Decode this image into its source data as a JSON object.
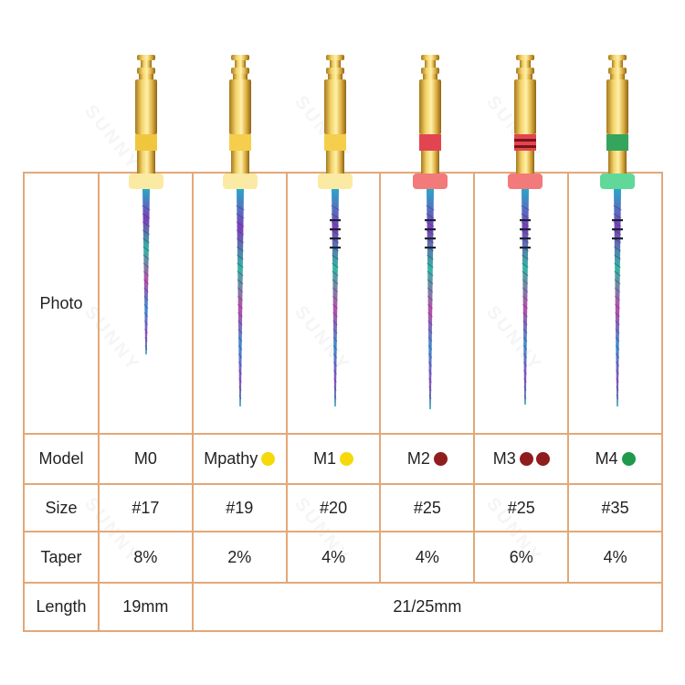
{
  "watermark": {
    "text": "SUNNY"
  },
  "colors": {
    "border": "#e3a878",
    "gold": "#c9a033",
    "yellow": "#f5d90a",
    "dark_red": "#8f1d1d",
    "red_ring": "#e0303e",
    "green": "#1f9a4a",
    "stopper_yellow": "#fbeaa3",
    "stopper_red": "#f27a7a",
    "stopper_green": "#5fd89a"
  },
  "table": {
    "row_labels": {
      "photo": "Photo",
      "model": "Model",
      "size": "Size",
      "taper": "Taper",
      "length": "Length"
    },
    "files": [
      {
        "model": "M0",
        "dots": [],
        "size": "#17",
        "taper": "8%",
        "band_color": "#f0c02a",
        "stopper_color": "#fbeaa3",
        "ring_color": "",
        "ring_count": 0,
        "marks": 0,
        "icon": "rotary-file-m0-icon"
      },
      {
        "model": "Mpathy",
        "dots": [
          "#f5d90a"
        ],
        "size": "#19",
        "taper": "2%",
        "band_color": "#f5c93a",
        "stopper_color": "#fbeaa3",
        "ring_color": "",
        "ring_count": 0,
        "marks": 0,
        "icon": "rotary-file-mpathy-icon"
      },
      {
        "model": "M1",
        "dots": [
          "#f5d90a"
        ],
        "size": "#20",
        "taper": "4%",
        "band_color": "#f5c93a",
        "stopper_color": "#fbeaa3",
        "ring_color": "",
        "ring_count": 0,
        "marks": 4,
        "icon": "rotary-file-m1-icon"
      },
      {
        "model": "M2",
        "dots": [
          "#8f1d1d"
        ],
        "size": "#25",
        "taper": "4%",
        "band_color": "#e0303e",
        "stopper_color": "#f27a7a",
        "ring_color": "#e0303e",
        "ring_count": 1,
        "marks": 4,
        "icon": "rotary-file-m2-icon"
      },
      {
        "model": "M3",
        "dots": [
          "#8f1d1d",
          "#8f1d1d"
        ],
        "size": "#25",
        "taper": "6%",
        "band_color": "#e0303e",
        "stopper_color": "#f27a7a",
        "ring_color": "#e0303e",
        "ring_count": 2,
        "marks": 4,
        "icon": "rotary-file-m3-icon"
      },
      {
        "model": "M4",
        "dots": [
          "#1f9a4a"
        ],
        "size": "#35",
        "taper": "4%",
        "band_color": "#1f9a4a",
        "stopper_color": "#5fd89a",
        "ring_color": "#1f9a4a",
        "ring_count": 1,
        "marks": 3,
        "icon": "rotary-file-m4-icon"
      }
    ],
    "length": {
      "first": "19mm",
      "others": "21/25mm"
    }
  }
}
